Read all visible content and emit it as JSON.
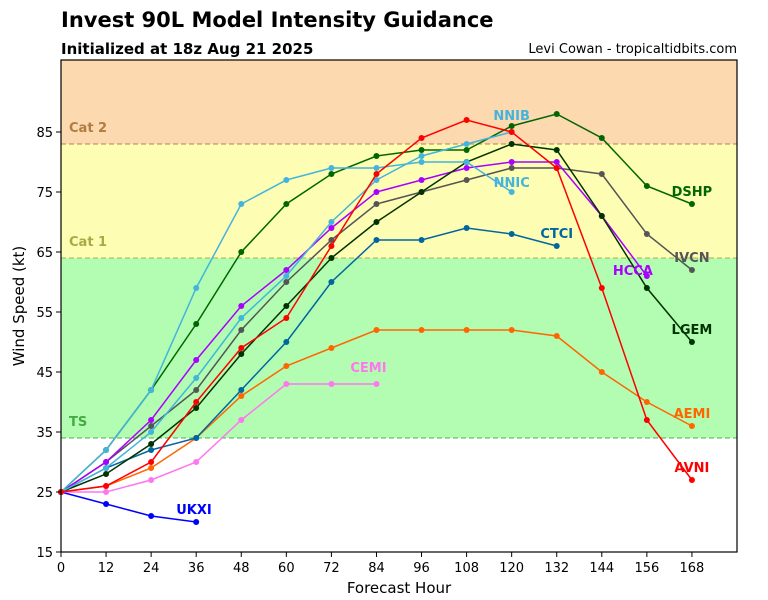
{
  "header": {
    "title": "Invest 90L Model Intensity Guidance",
    "subtitle": "Initialized at 18z Aug 21 2025",
    "credit": "Levi Cowan - tropicaltidbits.com"
  },
  "chart_data": {
    "type": "line",
    "title": "Invest 90L Model Intensity Guidance",
    "subtitle": "Initialized at 18z Aug 21 2025",
    "xlabel": "Forecast Hour",
    "ylabel": "Wind Speed (kt)",
    "xlim": [
      0,
      180
    ],
    "ylim": [
      15,
      97
    ],
    "xticks": [
      0,
      12,
      24,
      36,
      48,
      60,
      72,
      84,
      96,
      108,
      120,
      132,
      144,
      156,
      168
    ],
    "yticks": [
      15,
      25,
      35,
      45,
      55,
      65,
      75,
      85
    ],
    "grid": false,
    "bands": [
      {
        "name": "TS",
        "from": 34,
        "to": 64,
        "color": "#b2fdb2",
        "label_color": "#44aa44"
      },
      {
        "name": "Cat 1",
        "from": 64,
        "to": 83,
        "color": "#fdfdb4",
        "label_color": "#aaaa44"
      },
      {
        "name": "Cat 2",
        "from": 83,
        "to": 97,
        "color": "#fdd9b0",
        "label_color": "#b07d40"
      }
    ],
    "series": [
      {
        "name": "UKXI",
        "color": "#0000ff",
        "x": [
          0,
          12,
          24,
          36
        ],
        "y": [
          25,
          23,
          21,
          20
        ]
      },
      {
        "name": "CEMI",
        "color": "#ff77ee",
        "x": [
          0,
          12,
          24,
          36,
          48,
          60,
          72,
          84
        ],
        "y": [
          25,
          25,
          27,
          30,
          37,
          43,
          43,
          43
        ]
      },
      {
        "name": "AEMI",
        "color": "#ff6600",
        "x": [
          0,
          12,
          24,
          36,
          48,
          60,
          72,
          84,
          96,
          108,
          120,
          132,
          144,
          156,
          168
        ],
        "y": [
          25,
          26,
          29,
          34,
          41,
          46,
          49,
          52,
          52,
          52,
          52,
          51,
          45,
          40,
          36
        ]
      },
      {
        "name": "CTCI",
        "color": "#0066a0",
        "x": [
          0,
          12,
          24,
          36,
          48,
          60,
          72,
          84,
          96,
          108,
          120,
          132
        ],
        "y": [
          25,
          29,
          32,
          34,
          42,
          50,
          60,
          67,
          67,
          69,
          68,
          66
        ]
      },
      {
        "name": "IVCN",
        "color": "#555555",
        "x": [
          0,
          12,
          24,
          36,
          48,
          60,
          72,
          84,
          96,
          108,
          120,
          132,
          144,
          156,
          168
        ],
        "y": [
          25,
          30,
          36,
          42,
          52,
          60,
          67,
          73,
          75,
          77,
          79,
          79,
          78,
          68,
          62
        ]
      },
      {
        "name": "HCCA",
        "color": "#aa00ff",
        "x": [
          0,
          12,
          24,
          36,
          48,
          60,
          72,
          84,
          96,
          108,
          120,
          132,
          144,
          156
        ],
        "y": [
          25,
          30,
          37,
          47,
          56,
          62,
          69,
          75,
          77,
          79,
          80,
          80,
          71,
          61
        ]
      },
      {
        "name": "LGEM",
        "color": "#003300",
        "x": [
          0,
          12,
          24,
          36,
          48,
          60,
          72,
          84,
          96,
          108,
          120,
          132,
          144,
          156,
          168
        ],
        "y": [
          25,
          28,
          33,
          39,
          48,
          56,
          64,
          70,
          75,
          80,
          83,
          82,
          71,
          59,
          50
        ]
      },
      {
        "name": "DSHP",
        "color": "#006600",
        "x": [
          0,
          12,
          24,
          36,
          48,
          60,
          72,
          84,
          96,
          108,
          120,
          132,
          144,
          156,
          168
        ],
        "y": [
          25,
          32,
          42,
          53,
          65,
          73,
          78,
          81,
          82,
          82,
          86,
          88,
          84,
          76,
          73
        ]
      },
      {
        "name": "NNIB",
        "color": "#44b4dd",
        "x": [
          0,
          12,
          24,
          36,
          48,
          60,
          72,
          84,
          96,
          108,
          120
        ],
        "y": [
          25,
          29,
          35,
          44,
          54,
          61,
          70,
          77,
          81,
          83,
          85
        ]
      },
      {
        "name": "NNIC",
        "color": "#44b4dd",
        "x": [
          0,
          12,
          24,
          36,
          48,
          60,
          72,
          84,
          96,
          108,
          120
        ],
        "y": [
          25,
          32,
          42,
          59,
          73,
          77,
          79,
          79,
          80,
          80,
          75
        ]
      },
      {
        "name": "AVNI",
        "color": "#ff0000",
        "x": [
          0,
          12,
          24,
          36,
          48,
          60,
          72,
          84,
          96,
          108,
          120,
          132,
          144,
          156,
          168
        ],
        "y": [
          25,
          26,
          30,
          40,
          49,
          54,
          66,
          78,
          84,
          87,
          85,
          79,
          59,
          37,
          27
        ]
      }
    ]
  }
}
